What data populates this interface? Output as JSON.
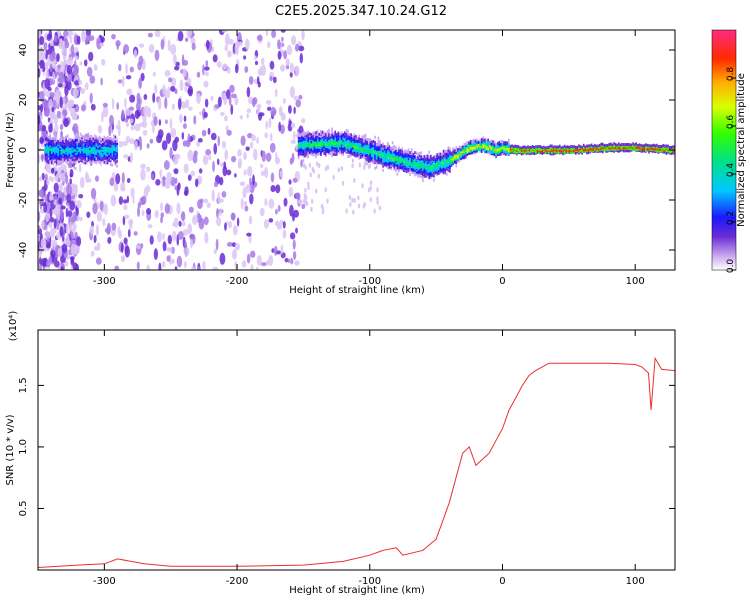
{
  "title": "C2E5.2025.347.10.24.G12",
  "colors": {
    "snr_line": "#e83030",
    "axis": "#000000",
    "background": "#ffffff"
  },
  "chart_data": [
    {
      "type": "heatmap",
      "name": "spectrogram",
      "xlabel": "Height of straight line (km)",
      "ylabel": "Frequency (Hz)",
      "xlim": [
        -350,
        130
      ],
      "ylim": [
        -48,
        48
      ],
      "xticks": [
        -300,
        -200,
        -100,
        0,
        100
      ],
      "yticks": [
        -40,
        -20,
        0,
        20,
        40
      ],
      "colorbar": {
        "label": "Normalized spectral amplitude",
        "range": [
          0,
          1
        ],
        "ticks": [
          0.0,
          0.2,
          0.4,
          0.6,
          0.8
        ]
      },
      "ridge_centerline_hz": [
        {
          "x": -340,
          "y": 0
        },
        {
          "x": -290,
          "y": 0
        },
        {
          "x": -155,
          "y": 2
        },
        {
          "x": -120,
          "y": 3
        },
        {
          "x": -90,
          "y": -2
        },
        {
          "x": -70,
          "y": -5
        },
        {
          "x": -55,
          "y": -7
        },
        {
          "x": -40,
          "y": -4
        },
        {
          "x": -25,
          "y": 1
        },
        {
          "x": -15,
          "y": 2
        },
        {
          "x": -5,
          "y": 0
        },
        {
          "x": 0,
          "y": 1
        },
        {
          "x": 10,
          "y": 0
        },
        {
          "x": 50,
          "y": 0
        },
        {
          "x": 80,
          "y": 1
        },
        {
          "x": 100,
          "y": 1
        },
        {
          "x": 130,
          "y": 0
        }
      ]
    },
    {
      "type": "line",
      "name": "snr",
      "xlabel": "Height of straight line (km)",
      "ylabel": "SNR (10 * v/v)",
      "scale_note": "(x10⁴)",
      "xlim": [
        -350,
        130
      ],
      "ylim": [
        0,
        1.95
      ],
      "xticks": [
        -300,
        -200,
        -100,
        0,
        100
      ],
      "yticks": [
        0.5,
        1.0,
        1.5
      ],
      "series": [
        {
          "name": "SNR",
          "x": [
            -350,
            -320,
            -300,
            -290,
            -270,
            -250,
            -200,
            -150,
            -120,
            -100,
            -90,
            -80,
            -75,
            -60,
            -50,
            -45,
            -40,
            -35,
            -30,
            -25,
            -20,
            -15,
            -10,
            -5,
            0,
            5,
            10,
            15,
            20,
            25,
            30,
            35,
            40,
            60,
            80,
            100,
            105,
            110,
            112,
            115,
            120,
            130
          ],
          "y": [
            0.02,
            0.04,
            0.05,
            0.09,
            0.05,
            0.03,
            0.03,
            0.04,
            0.07,
            0.12,
            0.16,
            0.18,
            0.12,
            0.16,
            0.25,
            0.4,
            0.55,
            0.75,
            0.95,
            1.0,
            0.85,
            0.9,
            0.95,
            1.05,
            1.15,
            1.3,
            1.4,
            1.5,
            1.58,
            1.62,
            1.65,
            1.68,
            1.68,
            1.68,
            1.68,
            1.67,
            1.65,
            1.6,
            1.3,
            1.72,
            1.63,
            1.62
          ]
        }
      ]
    }
  ]
}
